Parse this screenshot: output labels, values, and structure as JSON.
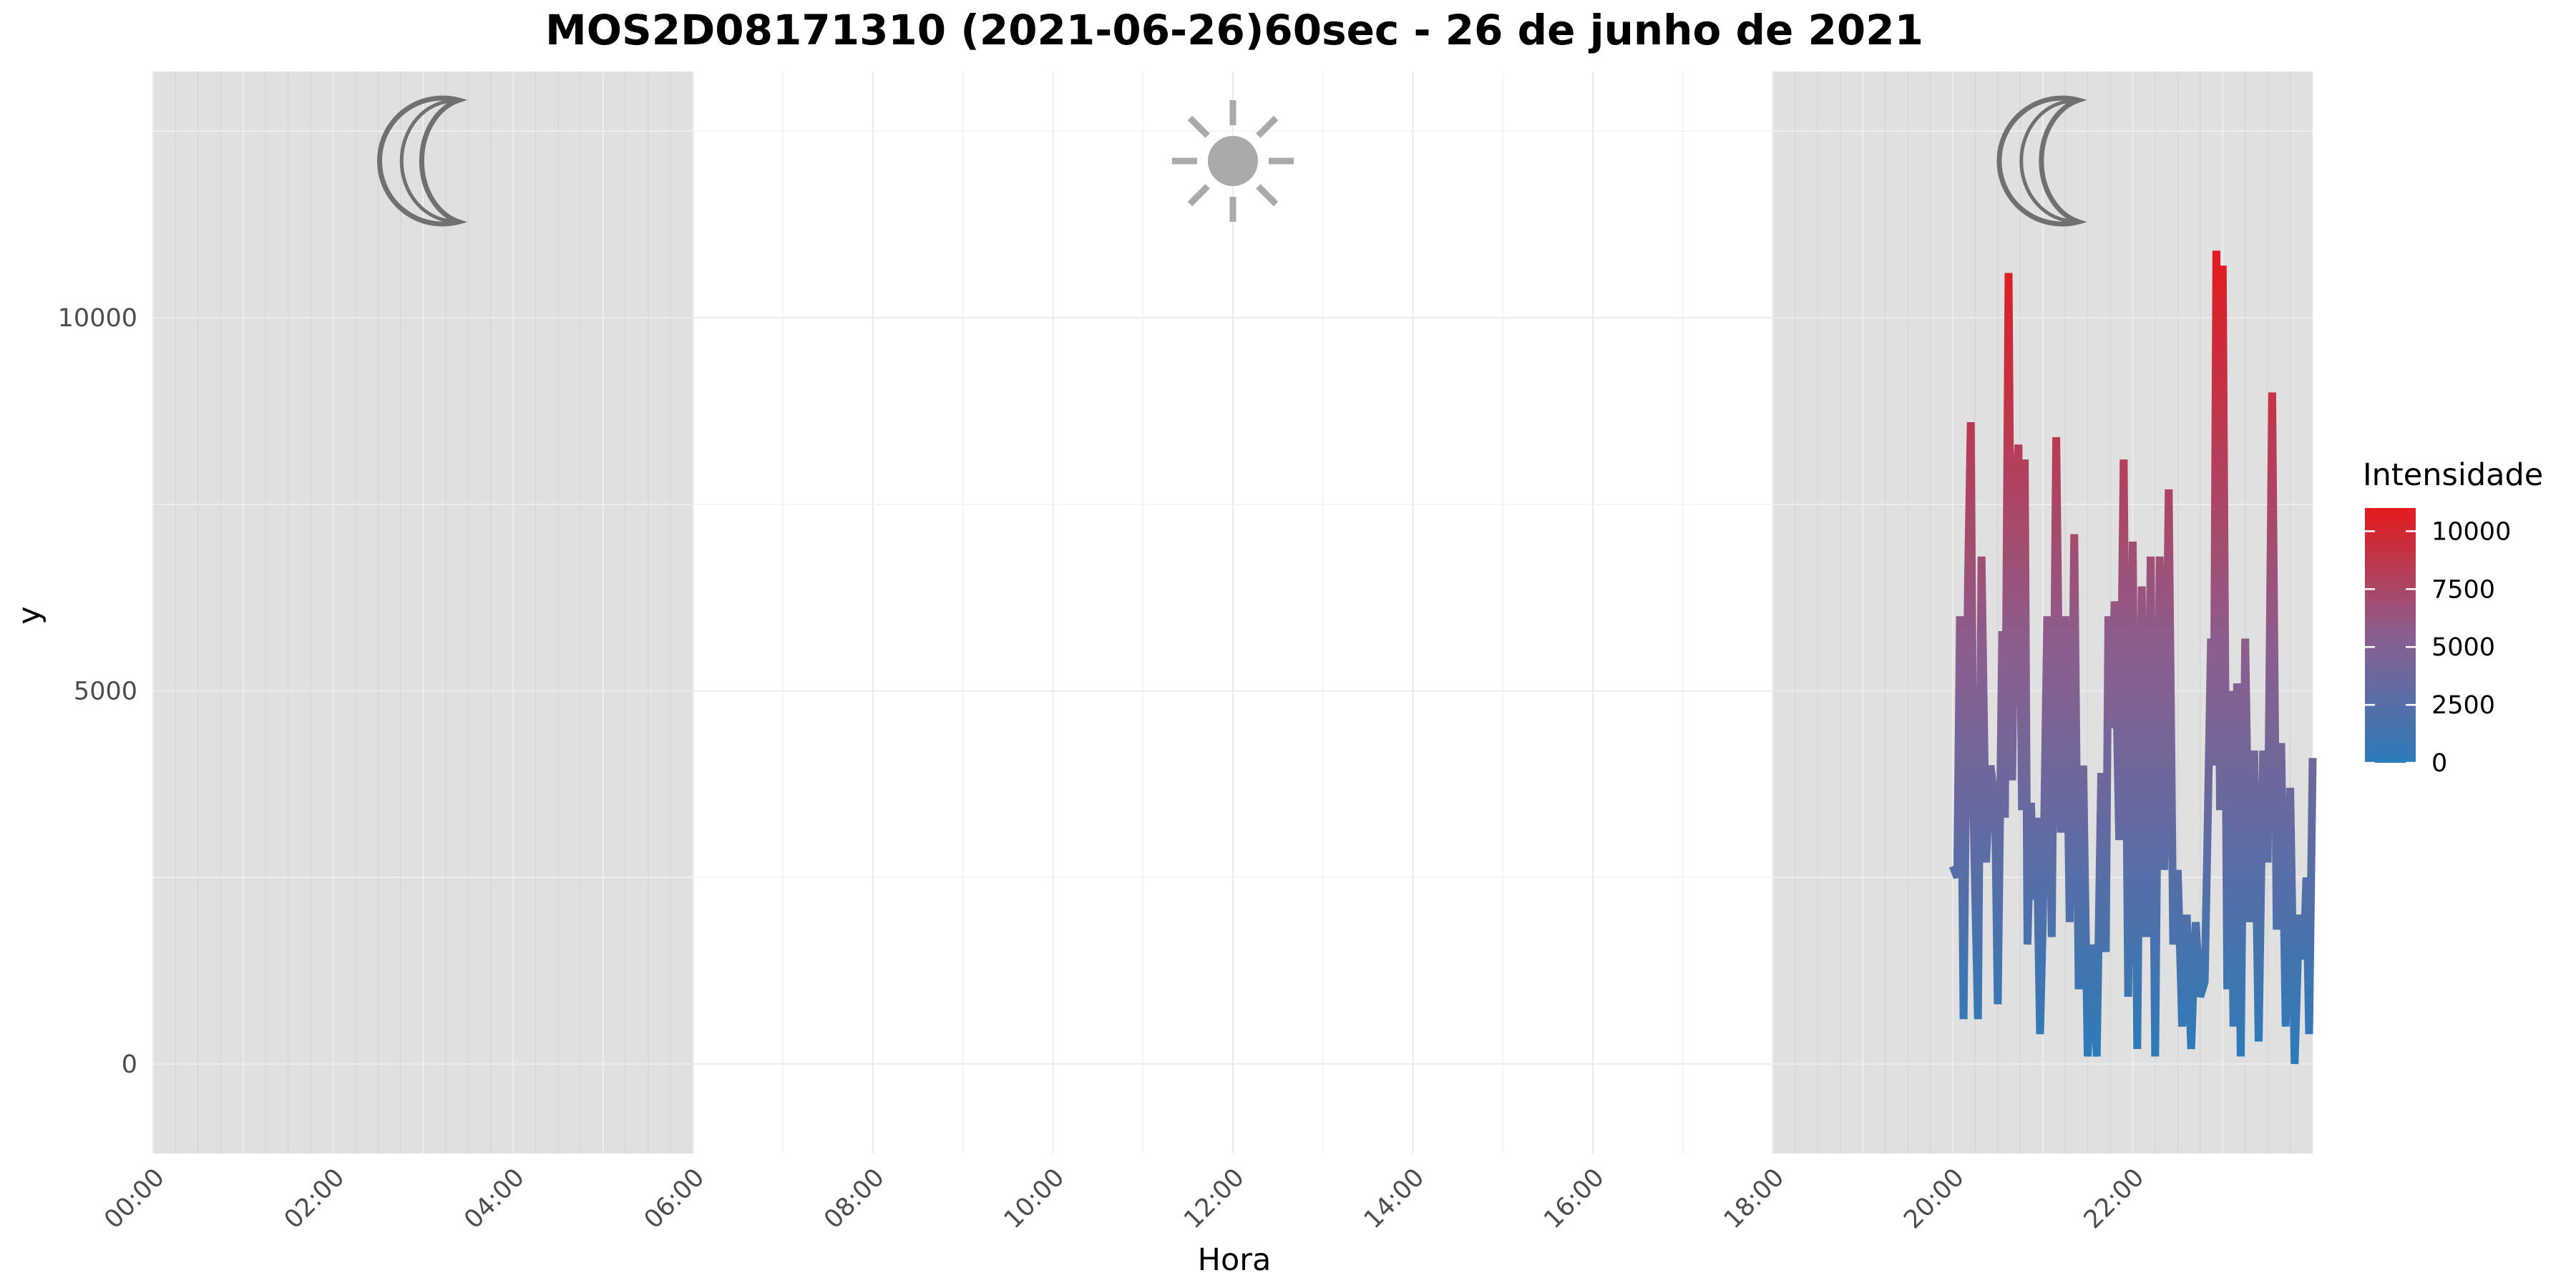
{
  "chart_data": {
    "type": "line",
    "title": "MOS2D08171310 (2021-06-26)60sec - 26 de junho de 2021",
    "xlabel": "Hora",
    "ylabel": "y",
    "x_unit": "hours",
    "xlim": [
      0,
      24
    ],
    "ylim": [
      -1200,
      13300
    ],
    "x_ticks": [
      0,
      2,
      4,
      6,
      8,
      10,
      12,
      14,
      16,
      18,
      20,
      22
    ],
    "x_tick_labels": [
      "00:00",
      "02:00",
      "04:00",
      "06:00",
      "08:00",
      "10:00",
      "12:00",
      "14:00",
      "16:00",
      "18:00",
      "20:00",
      "22:00"
    ],
    "y_ticks": [
      0,
      5000,
      10000
    ],
    "y_tick_labels": [
      "0",
      "5000",
      "10000"
    ],
    "night_shading": [
      [
        0,
        6
      ],
      [
        18,
        24
      ]
    ],
    "icons": [
      {
        "icon": "moon-icon",
        "x": 3
      },
      {
        "icon": "sun-icon",
        "x": 12
      },
      {
        "icon": "moon-icon",
        "x": 21
      }
    ],
    "grid": true,
    "legend": {
      "title": "Intensidade",
      "placement": "right",
      "ticks": [
        "0",
        "2500",
        "5000",
        "7500",
        "10000"
      ],
      "tick_values": [
        0,
        2500,
        5000,
        7500,
        10000
      ],
      "range": [
        0,
        11000
      ],
      "low_color": "#2b7bba",
      "high_color": "#e41a1c"
    },
    "series": [
      {
        "color_scale": "y",
        "points": [
          [
            20.0,
            2650
          ],
          [
            20.05,
            2500
          ],
          [
            20.08,
            6000
          ],
          [
            20.12,
            600
          ],
          [
            20.17,
            6500
          ],
          [
            20.2,
            8600
          ],
          [
            20.23,
            3400
          ],
          [
            20.28,
            600
          ],
          [
            20.32,
            6800
          ],
          [
            20.37,
            2700
          ],
          [
            20.42,
            4000
          ],
          [
            20.47,
            3500
          ],
          [
            20.5,
            800
          ],
          [
            20.55,
            5800
          ],
          [
            20.58,
            3300
          ],
          [
            20.62,
            10600
          ],
          [
            20.66,
            3800
          ],
          [
            20.7,
            7700
          ],
          [
            20.73,
            8300
          ],
          [
            20.77,
            3400
          ],
          [
            20.8,
            8100
          ],
          [
            20.83,
            1600
          ],
          [
            20.87,
            3500
          ],
          [
            20.9,
            2200
          ],
          [
            20.93,
            3300
          ],
          [
            20.97,
            400
          ],
          [
            21.0,
            1900
          ],
          [
            21.05,
            6000
          ],
          [
            21.1,
            1700
          ],
          [
            21.15,
            8400
          ],
          [
            21.2,
            3100
          ],
          [
            21.25,
            6000
          ],
          [
            21.3,
            1900
          ],
          [
            21.35,
            7100
          ],
          [
            21.4,
            1000
          ],
          [
            21.45,
            4000
          ],
          [
            21.5,
            100
          ],
          [
            21.55,
            1600
          ],
          [
            21.6,
            100
          ],
          [
            21.65,
            3900
          ],
          [
            21.7,
            1500
          ],
          [
            21.73,
            6000
          ],
          [
            21.76,
            4500
          ],
          [
            21.8,
            6200
          ],
          [
            21.85,
            3000
          ],
          [
            21.9,
            8100
          ],
          [
            21.95,
            900
          ],
          [
            22.0,
            7000
          ],
          [
            22.05,
            200
          ],
          [
            22.1,
            6400
          ],
          [
            22.15,
            1700
          ],
          [
            22.2,
            6800
          ],
          [
            22.25,
            100
          ],
          [
            22.3,
            6800
          ],
          [
            22.35,
            2600
          ],
          [
            22.4,
            7700
          ],
          [
            22.45,
            1600
          ],
          [
            22.5,
            2600
          ],
          [
            22.55,
            500
          ],
          [
            22.6,
            2000
          ],
          [
            22.65,
            200
          ],
          [
            22.7,
            1900
          ],
          [
            22.75,
            900
          ],
          [
            22.8,
            1100
          ],
          [
            22.83,
            3000
          ],
          [
            22.87,
            5700
          ],
          [
            22.9,
            4000
          ],
          [
            22.93,
            10900
          ],
          [
            22.97,
            3400
          ],
          [
            23.0,
            10700
          ],
          [
            23.05,
            1000
          ],
          [
            23.08,
            5000
          ],
          [
            23.12,
            500
          ],
          [
            23.16,
            5100
          ],
          [
            23.2,
            100
          ],
          [
            23.25,
            5700
          ],
          [
            23.3,
            1900
          ],
          [
            23.35,
            4200
          ],
          [
            23.4,
            300
          ],
          [
            23.45,
            4200
          ],
          [
            23.5,
            2700
          ],
          [
            23.55,
            9000
          ],
          [
            23.6,
            1800
          ],
          [
            23.65,
            4300
          ],
          [
            23.7,
            500
          ],
          [
            23.75,
            3700
          ],
          [
            23.8,
            0
          ],
          [
            23.85,
            2000
          ],
          [
            23.9,
            1400
          ],
          [
            23.93,
            2500
          ],
          [
            23.96,
            400
          ],
          [
            24.0,
            4100
          ]
        ]
      }
    ]
  }
}
